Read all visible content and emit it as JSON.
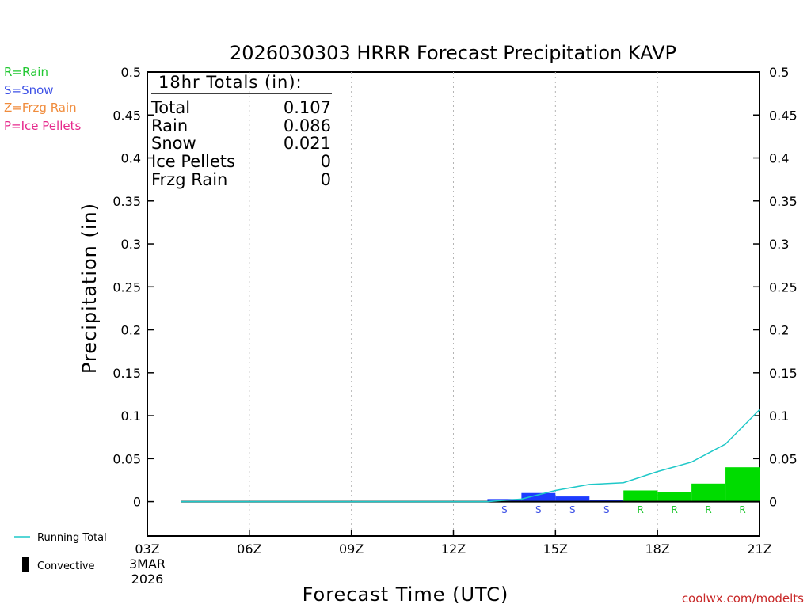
{
  "chart_data": {
    "type": "bar",
    "title": "2026030303 HRRR Forecast Precipitation KAVP",
    "xlabel": "Forecast Time (UTC)",
    "ylabel": "Precipitation (in)",
    "ylim": [
      -0.04,
      0.5
    ],
    "xlim": [
      0,
      18
    ],
    "y_ticks": [
      0,
      0.05,
      0.1,
      0.15,
      0.2,
      0.25,
      0.3,
      0.35,
      0.4,
      0.45,
      0.5
    ],
    "y_tick_labels": [
      "0",
      "0.05",
      "0.1",
      "0.15",
      "0.2",
      "0.25",
      "0.3",
      "0.35",
      "0.4",
      "0.45",
      "0.5"
    ],
    "x_ticks": [
      {
        "hour": 0,
        "label": "03Z",
        "sublabel1": "3MAR",
        "sublabel2": "2026"
      },
      {
        "hour": 3,
        "label": "06Z"
      },
      {
        "hour": 6,
        "label": "09Z"
      },
      {
        "hour": 9,
        "label": "12Z"
      },
      {
        "hour": 12,
        "label": "15Z"
      },
      {
        "hour": 15,
        "label": "18Z"
      },
      {
        "hour": 18,
        "label": "21Z"
      }
    ],
    "hourly_precip": [
      {
        "hour": 11,
        "value": 0.003,
        "type": "S"
      },
      {
        "hour": 12,
        "value": 0.01,
        "type": "S"
      },
      {
        "hour": 13,
        "value": 0.006,
        "type": "S"
      },
      {
        "hour": 14,
        "value": 0.002,
        "type": "S"
      },
      {
        "hour": 15,
        "value": 0.013,
        "type": "R"
      },
      {
        "hour": 16,
        "value": 0.011,
        "type": "R"
      },
      {
        "hour": 17,
        "value": 0.021,
        "type": "R"
      },
      {
        "hour": 18,
        "value": 0.04,
        "type": "R"
      }
    ],
    "running_total": [
      {
        "hour": 1,
        "value": 0
      },
      {
        "hour": 2,
        "value": 0
      },
      {
        "hour": 3,
        "value": 0
      },
      {
        "hour": 4,
        "value": 0
      },
      {
        "hour": 5,
        "value": 0
      },
      {
        "hour": 6,
        "value": 0
      },
      {
        "hour": 7,
        "value": 0
      },
      {
        "hour": 8,
        "value": 0
      },
      {
        "hour": 9,
        "value": 0
      },
      {
        "hour": 10,
        "value": 0
      },
      {
        "hour": 11,
        "value": 0.003
      },
      {
        "hour": 12,
        "value": 0.013
      },
      {
        "hour": 13,
        "value": 0.02
      },
      {
        "hour": 14,
        "value": 0.022
      },
      {
        "hour": 15,
        "value": 0.035
      },
      {
        "hour": 16,
        "value": 0.046
      },
      {
        "hour": 17,
        "value": 0.067
      },
      {
        "hour": 18,
        "value": 0.107
      }
    ],
    "convective": [],
    "totals_box": {
      "heading": "18hr Totals (in):",
      "rows": [
        {
          "label": "Total",
          "value": "0.107"
        },
        {
          "label": "Rain",
          "value": "0.086"
        },
        {
          "label": "Snow",
          "value": "0.021"
        },
        {
          "label": "Ice Pellets",
          "value": "0"
        },
        {
          "label": "Frzg Rain",
          "value": "0"
        }
      ]
    },
    "type_legend": [
      {
        "code": "R",
        "text": "R=Rain",
        "color": "#22c832"
      },
      {
        "code": "S",
        "text": "S=Snow",
        "color": "#3c50e6"
      },
      {
        "code": "Z",
        "text": "Z=Frzg Rain",
        "color": "#f08c3c"
      },
      {
        "code": "P",
        "text": "P=Ice Pellets",
        "color": "#e6288c"
      }
    ],
    "line_legend": {
      "running_total": "Running Total",
      "convective": "Convective"
    },
    "colors": {
      "rain": "#00dc00",
      "snow": "#1e3cff",
      "running_total": "#1ec8c8",
      "axis": "#000000",
      "grid": "#b4b4b4"
    }
  },
  "credit": "coolwx.com/modelts"
}
